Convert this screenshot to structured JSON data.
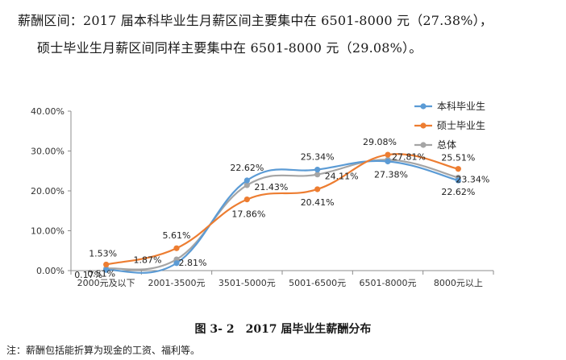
{
  "paragraphs": [
    "薪酬区间：2017 届本科毕业生月薪区间主要集中在 6501-8000 元（27.38%），",
    "硕士毕业生月薪区间同样主要集中在 6501-8000 元（29.08%）。"
  ],
  "caption": "图 3- 2　2017 届毕业生薪酬分布",
  "note": "注：薪酬包括能折算为现金的工资、福利等。",
  "chart_data": {
    "type": "line",
    "title": "",
    "xlabel": "",
    "ylabel": "",
    "categories": [
      "2000元及以下",
      "2001-3500元",
      "3501-5000元",
      "5001-6500元",
      "6501-8000元",
      "8000元以上"
    ],
    "y_ticks": [
      "0.00%",
      "10.00%",
      "20.00%",
      "30.00%",
      "40.00%"
    ],
    "ylim": [
      0,
      40
    ],
    "legend_position": "top-right",
    "grid": false,
    "series": [
      {
        "name": "本科毕业生",
        "color": "#5b9bd5",
        "values": [
          0.17,
          1.87,
          22.62,
          25.34,
          27.38,
          22.62
        ],
        "labels": [
          "0.17%",
          "1.87%",
          "22.62%",
          "25.34%",
          "27.38%",
          "22.62%"
        ]
      },
      {
        "name": "硕士毕业生",
        "color": "#ed7d31",
        "values": [
          1.53,
          5.61,
          17.86,
          20.41,
          29.08,
          25.51
        ],
        "labels": [
          "1.53%",
          "5.61%",
          "17.86%",
          "20.41%",
          "29.08%",
          "25.51%"
        ]
      },
      {
        "name": "总体",
        "color": "#a5a5a5",
        "values": [
          0.51,
          2.81,
          21.43,
          24.11,
          27.81,
          23.34
        ],
        "labels": [
          "0.51%",
          "2.81%",
          "21.43%",
          "24.11%",
          "27.81%",
          "23.34%"
        ]
      }
    ]
  }
}
